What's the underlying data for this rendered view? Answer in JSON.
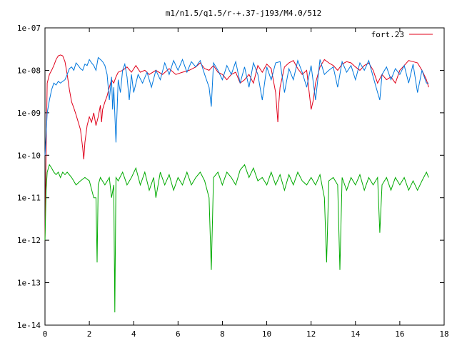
{
  "chart_data": {
    "type": "line",
    "title": "m1/n1.5/q1.5/r-+.37-j193/M4.0/512",
    "xlabel": "",
    "ylabel": "",
    "xlim": [
      0,
      18
    ],
    "ylim": [
      1e-14,
      1e-07
    ],
    "yscale": "log",
    "xticks": [
      0,
      2,
      4,
      6,
      8,
      10,
      12,
      14,
      16,
      18
    ],
    "xtick_labels": [
      "0",
      "2",
      "4",
      "6",
      "8",
      "10",
      "12",
      "14",
      "16",
      "18"
    ],
    "yticks": [
      1e-14,
      1e-13,
      1e-12,
      1e-11,
      1e-10,
      1e-09,
      1e-08,
      1e-07
    ],
    "ytick_labels": [
      "1e-14",
      "1e-13",
      "1e-12",
      "1e-11",
      "1e-10",
      "1e-09",
      "1e-08",
      "1e-07"
    ],
    "grid": false,
    "legend_position": "top-right",
    "series": [
      {
        "name": "fort.23",
        "color": "#e0001a",
        "x": [
          0.0,
          0.05,
          0.1,
          0.2,
          0.3,
          0.4,
          0.5,
          0.6,
          0.7,
          0.8,
          0.9,
          1.0,
          1.1,
          1.2,
          1.3,
          1.4,
          1.5,
          1.6,
          1.7,
          1.75,
          1.8,
          1.9,
          2.0,
          2.1,
          2.2,
          2.3,
          2.4,
          2.5,
          2.55,
          2.6,
          2.7,
          2.8,
          2.9,
          3.0,
          3.1,
          3.2,
          3.3,
          3.5,
          3.7,
          3.9,
          4.1,
          4.3,
          4.5,
          4.7,
          5.0,
          5.3,
          5.6,
          5.9,
          6.2,
          6.5,
          6.8,
          7.0,
          7.2,
          7.4,
          7.6,
          7.8,
          8.0,
          8.2,
          8.4,
          8.6,
          8.8,
          9.0,
          9.2,
          9.4,
          9.6,
          9.8,
          10.0,
          10.2,
          10.4,
          10.5,
          10.55,
          10.6,
          10.8,
          11.0,
          11.2,
          11.4,
          11.6,
          11.8,
          12.0,
          12.1,
          12.2,
          12.4,
          12.6,
          12.8,
          13.0,
          13.2,
          13.4,
          13.6,
          13.8,
          14.0,
          14.2,
          14.4,
          14.6,
          14.8,
          15.0,
          15.2,
          15.4,
          15.6,
          15.8,
          16.0,
          16.2,
          16.4,
          16.6,
          16.8,
          17.0,
          17.2,
          17.3
        ],
        "y": [
          1e-12,
          1.2e-10,
          5e-09,
          8e-09,
          1e-08,
          1.3e-08,
          1.8e-08,
          2.2e-08,
          2.3e-08,
          2.2e-08,
          1.6e-08,
          8e-09,
          3.5e-09,
          1.8e-09,
          1.3e-09,
          9e-10,
          6e-10,
          4e-10,
          1.5e-10,
          8e-11,
          2e-10,
          5e-10,
          8e-10,
          6e-10,
          1e-09,
          5e-10,
          8e-10,
          1.5e-09,
          6e-10,
          1.2e-09,
          1.8e-09,
          2.5e-09,
          4e-09,
          6e-09,
          5e-09,
          7e-09,
          9e-09,
          1e-08,
          1.2e-08,
          9e-09,
          1.3e-08,
          9e-09,
          1e-08,
          8e-09,
          1e-08,
          8e-09,
          1.1e-08,
          8e-09,
          9e-09,
          1e-08,
          1.2e-08,
          1.5e-08,
          1.1e-08,
          1e-08,
          1.3e-08,
          9e-09,
          8e-09,
          6e-09,
          8e-09,
          9e-09,
          5e-09,
          6e-09,
          8e-09,
          5e-09,
          1.3e-08,
          9e-09,
          1.4e-08,
          1.1e-08,
          3e-09,
          6e-10,
          1.8e-09,
          4e-09,
          1.2e-08,
          1.5e-08,
          1.7e-08,
          1.1e-08,
          8e-09,
          1e-08,
          1.2e-09,
          2e-09,
          5e-09,
          1.2e-08,
          1.8e-08,
          1.5e-08,
          1.3e-08,
          1e-08,
          1.4e-08,
          1.6e-08,
          1.5e-08,
          1.2e-08,
          1e-08,
          1.3e-08,
          1.5e-08,
          1e-08,
          5e-09,
          8e-09,
          6e-09,
          7e-09,
          5e-09,
          1e-08,
          1.3e-08,
          1.7e-08,
          1.6e-08,
          1.5e-08,
          1e-08,
          6e-09,
          4e-09
        ]
      },
      {
        "name": "",
        "color": "#0077dd",
        "x": [
          0.0,
          0.05,
          0.1,
          0.2,
          0.3,
          0.4,
          0.5,
          0.6,
          0.7,
          0.8,
          0.9,
          1.0,
          1.1,
          1.2,
          1.3,
          1.4,
          1.5,
          1.6,
          1.7,
          1.8,
          1.9,
          2.0,
          2.1,
          2.2,
          2.3,
          2.4,
          2.5,
          2.6,
          2.7,
          2.8,
          2.9,
          3.0,
          3.05,
          3.1,
          3.2,
          3.3,
          3.4,
          3.5,
          3.6,
          3.7,
          3.8,
          3.9,
          4.0,
          4.2,
          4.4,
          4.6,
          4.8,
          5.0,
          5.2,
          5.4,
          5.6,
          5.8,
          6.0,
          6.2,
          6.4,
          6.6,
          6.8,
          7.0,
          7.2,
          7.4,
          7.5,
          7.6,
          7.8,
          8.0,
          8.2,
          8.4,
          8.6,
          8.8,
          9.0,
          9.2,
          9.4,
          9.6,
          9.8,
          10.0,
          10.2,
          10.4,
          10.6,
          10.8,
          11.0,
          11.2,
          11.4,
          11.6,
          11.8,
          12.0,
          12.2,
          12.4,
          12.6,
          12.8,
          13.0,
          13.2,
          13.4,
          13.6,
          13.8,
          14.0,
          14.2,
          14.4,
          14.6,
          14.8,
          15.0,
          15.1,
          15.2,
          15.4,
          15.6,
          15.8,
          16.0,
          16.2,
          16.4,
          16.6,
          16.8,
          17.0,
          17.2,
          17.3
        ],
        "y": [
          1e-10,
          3e-10,
          1e-09,
          2e-09,
          3.5e-09,
          5e-09,
          4.5e-09,
          5.5e-09,
          5e-09,
          5.5e-09,
          6e-09,
          8e-09,
          1.1e-08,
          1.2e-08,
          1e-08,
          1.5e-08,
          1.3e-08,
          1.1e-08,
          1e-08,
          1.4e-08,
          1.3e-08,
          1.8e-08,
          1.5e-08,
          1.3e-08,
          1e-08,
          2e-08,
          1.8e-08,
          1.6e-08,
          1.3e-08,
          8e-09,
          2e-09,
          7e-09,
          1.2e-09,
          4e-09,
          2e-10,
          6e-09,
          3e-09,
          1e-08,
          1.4e-08,
          7e-09,
          2e-09,
          8e-09,
          3e-09,
          8e-09,
          5e-09,
          9e-09,
          4e-09,
          1e-08,
          6e-09,
          1.5e-08,
          8e-09,
          1.7e-08,
          1e-08,
          1.8e-08,
          9e-09,
          1.6e-08,
          1.2e-08,
          1.7e-08,
          8e-09,
          4e-09,
          1.4e-09,
          1.5e-08,
          1e-08,
          6e-09,
          1.3e-08,
          8e-09,
          1.6e-08,
          5e-09,
          1.2e-08,
          4e-09,
          1.5e-08,
          8e-09,
          2e-09,
          1.2e-08,
          6e-09,
          1.5e-08,
          1.6e-08,
          3e-09,
          1.1e-08,
          6e-09,
          1.7e-08,
          9e-09,
          4e-09,
          1.3e-08,
          2e-09,
          1.8e-08,
          8e-09,
          1e-08,
          1.2e-08,
          4e-09,
          1.6e-08,
          9e-09,
          1.3e-08,
          6e-09,
          1.5e-08,
          1e-08,
          1.7e-08,
          7e-09,
          3e-09,
          2e-09,
          8e-09,
          1.2e-08,
          6e-09,
          1.1e-08,
          8e-09,
          1.3e-08,
          5e-09,
          1.4e-08,
          3e-09,
          1e-08,
          5e-09,
          5e-09
        ]
      },
      {
        "name": "",
        "color": "#00aa00",
        "x": [
          0.0,
          0.05,
          0.1,
          0.2,
          0.3,
          0.4,
          0.5,
          0.6,
          0.7,
          0.8,
          0.9,
          1.0,
          1.2,
          1.4,
          1.6,
          1.8,
          2.0,
          2.2,
          2.3,
          2.35,
          2.4,
          2.5,
          2.7,
          2.9,
          3.0,
          3.1,
          3.15,
          3.2,
          3.3,
          3.5,
          3.7,
          3.9,
          4.1,
          4.3,
          4.5,
          4.7,
          4.9,
          5.0,
          5.2,
          5.4,
          5.6,
          5.8,
          6.0,
          6.2,
          6.4,
          6.6,
          6.8,
          7.0,
          7.2,
          7.4,
          7.5,
          7.6,
          7.8,
          8.0,
          8.2,
          8.4,
          8.6,
          8.8,
          9.0,
          9.2,
          9.4,
          9.6,
          9.8,
          10.0,
          10.2,
          10.4,
          10.6,
          10.8,
          11.0,
          11.2,
          11.4,
          11.6,
          11.8,
          12.0,
          12.2,
          12.4,
          12.6,
          12.7,
          12.8,
          13.0,
          13.2,
          13.3,
          13.4,
          13.6,
          13.8,
          14.0,
          14.2,
          14.4,
          14.6,
          14.8,
          15.0,
          15.1,
          15.2,
          15.4,
          15.6,
          15.8,
          16.0,
          16.2,
          16.4,
          16.6,
          16.8,
          17.0,
          17.2,
          17.3
        ],
        "y": [
          1e-12,
          1.5e-11,
          4e-11,
          6e-11,
          5e-11,
          4e-11,
          3.5e-11,
          4e-11,
          3e-11,
          4e-11,
          3.5e-11,
          4e-11,
          3e-11,
          2e-11,
          2.5e-11,
          3e-11,
          2.5e-11,
          1e-11,
          1e-11,
          3e-13,
          2e-11,
          3e-11,
          2e-11,
          3e-11,
          1e-11,
          2e-11,
          2e-14,
          3e-11,
          2.5e-11,
          4e-11,
          2e-11,
          3e-11,
          5e-11,
          2e-11,
          4e-11,
          1.5e-11,
          3e-11,
          1e-11,
          4e-11,
          2e-11,
          3.5e-11,
          1.5e-11,
          3e-11,
          2e-11,
          4e-11,
          2e-11,
          3e-11,
          4e-11,
          2.5e-11,
          1e-11,
          2e-13,
          3e-11,
          4e-11,
          2e-11,
          4e-11,
          3e-11,
          2e-11,
          4.5e-11,
          6e-11,
          3e-11,
          5e-11,
          2.5e-11,
          3e-11,
          2e-11,
          4e-11,
          2e-11,
          3.5e-11,
          1.5e-11,
          3.5e-11,
          2e-11,
          4e-11,
          2.5e-11,
          2e-11,
          3e-11,
          2e-11,
          3.5e-11,
          1e-11,
          3e-13,
          2.5e-11,
          3e-11,
          2e-11,
          2e-13,
          3e-11,
          1.5e-11,
          3e-11,
          2e-11,
          3.5e-11,
          1.5e-11,
          3e-11,
          2e-11,
          3e-11,
          1.5e-12,
          2e-11,
          3e-11,
          1.5e-11,
          3e-11,
          2e-11,
          3e-11,
          1.5e-11,
          2.5e-11,
          1.5e-11,
          2.5e-11,
          4e-11,
          3e-11
        ]
      }
    ]
  }
}
